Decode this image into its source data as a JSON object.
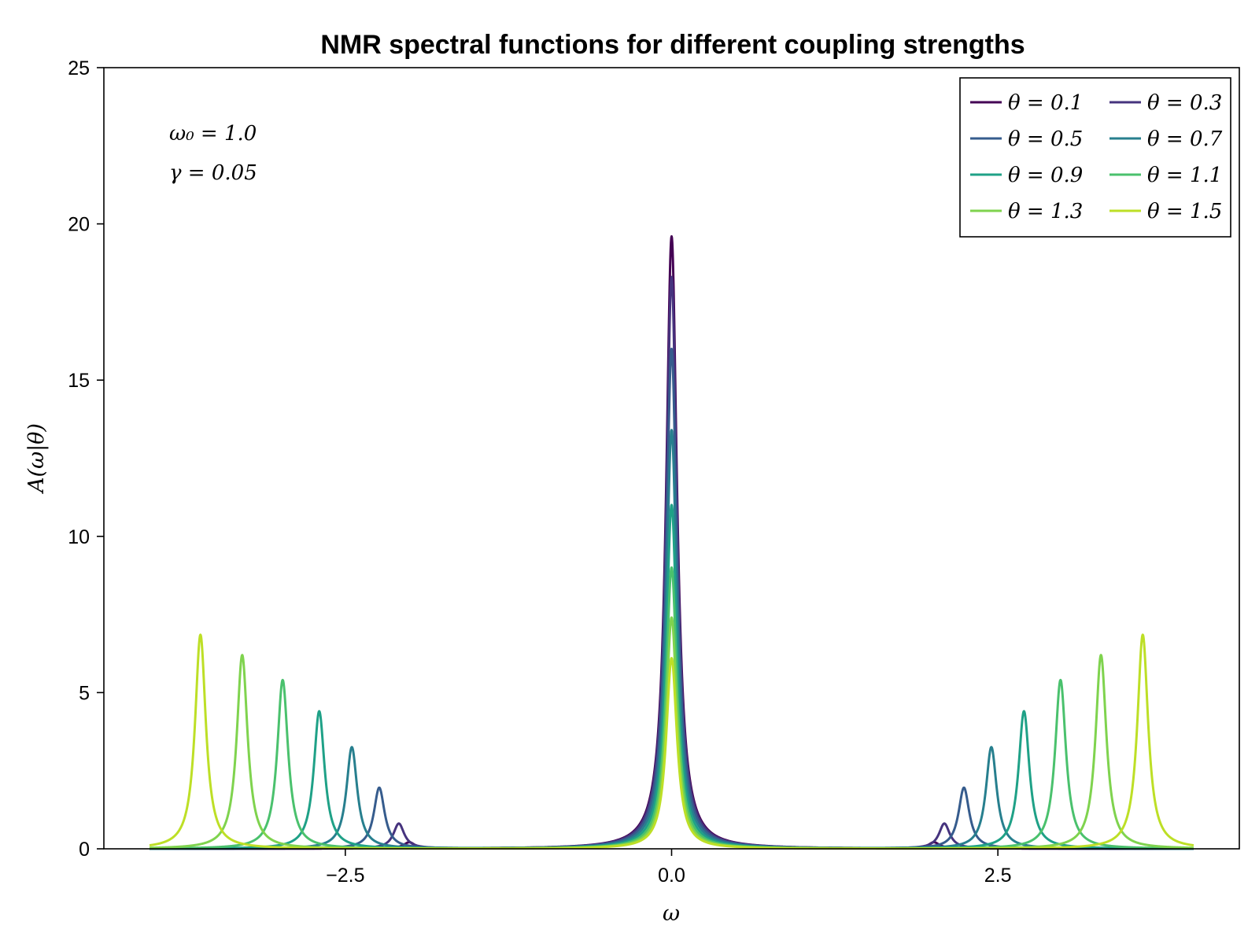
{
  "chart_data": {
    "type": "line",
    "title": "NMR spectral functions for different coupling strengths",
    "xlabel": "ω",
    "ylabel": "A(ω|θ)",
    "xlim": [
      -4.35,
      4.35
    ],
    "ylim": [
      0,
      25
    ],
    "x_range": [
      -4.0,
      4.0
    ],
    "xticks": [
      -2.5,
      0.0,
      2.5
    ],
    "xtick_labels": [
      "−2.5",
      "0.0",
      "2.5"
    ],
    "yticks": [
      0,
      5,
      10,
      15,
      20,
      25
    ],
    "ytick_labels": [
      "0",
      "5",
      "10",
      "15",
      "20",
      "25"
    ],
    "grid": false,
    "legend_position": "top-right",
    "legend_columns": 2,
    "annotations": [
      "ω₀ = 1.0",
      "γ = 0.05"
    ],
    "series": [
      {
        "name": "θ = 0.1",
        "color": "#440154",
        "center_peak": 19.6,
        "side_peak_omega": 2.01,
        "side_peak_height": 0.2
      },
      {
        "name": "θ = 0.3",
        "color": "#46337e",
        "center_peak": 18.3,
        "side_peak_omega": 2.09,
        "side_peak_height": 0.8
      },
      {
        "name": "θ = 0.5",
        "color": "#365c8d",
        "center_peak": 16.0,
        "side_peak_omega": 2.24,
        "side_peak_height": 1.95
      },
      {
        "name": "θ = 0.7",
        "color": "#277f8e",
        "center_peak": 13.4,
        "side_peak_omega": 2.45,
        "side_peak_height": 3.25
      },
      {
        "name": "θ = 0.9",
        "color": "#1fa187",
        "center_peak": 11.0,
        "side_peak_omega": 2.7,
        "side_peak_height": 4.4
      },
      {
        "name": "θ = 1.1",
        "color": "#4ac16d",
        "center_peak": 9.0,
        "side_peak_omega": 2.98,
        "side_peak_height": 5.4
      },
      {
        "name": "θ = 1.3",
        "color": "#7fd34e",
        "center_peak": 7.4,
        "side_peak_omega": 3.29,
        "side_peak_height": 6.2
      },
      {
        "name": "θ = 1.5",
        "color": "#bddf26",
        "center_peak": 6.1,
        "side_peak_omega": 3.61,
        "side_peak_height": 6.85
      }
    ]
  }
}
